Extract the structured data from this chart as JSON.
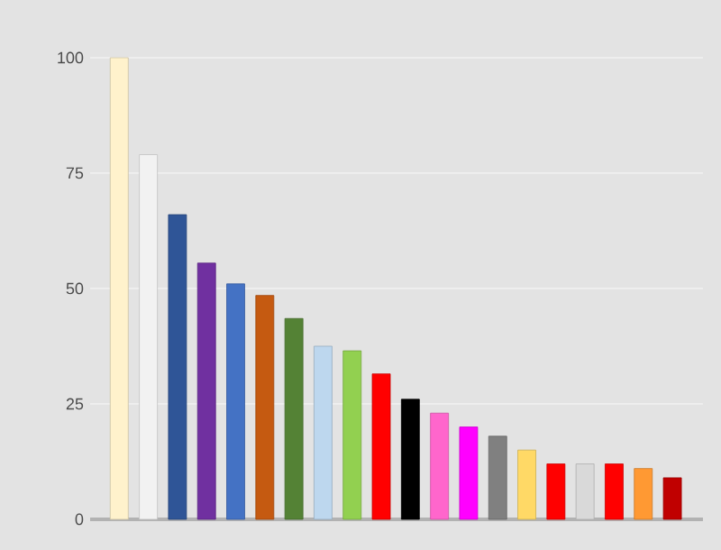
{
  "chart_data": {
    "type": "bar",
    "categories": [
      null,
      null,
      null,
      null,
      null,
      null,
      null,
      null,
      null,
      null,
      null,
      null,
      null,
      null,
      null,
      null,
      null,
      null,
      null,
      null
    ],
    "values": [
      100,
      79,
      66,
      55.5,
      51,
      48.5,
      43.5,
      37.5,
      36.5,
      31.5,
      26,
      23,
      20,
      18,
      15,
      12,
      12,
      12,
      11,
      9
    ],
    "colors": [
      "#fff2cc",
      "#f2f2f2",
      "#2f5597",
      "#7030a0",
      "#4472c4",
      "#c55a11",
      "#548235",
      "#bdd7ee",
      "#92d050",
      "#ff0000",
      "#000000",
      "#ff66cc",
      "#ff00ff",
      "#808080",
      "#ffd966",
      "#ff0000",
      "#d9d9d9",
      "#ff0000",
      "#ff9933",
      "#c00000"
    ],
    "ylim": [
      0,
      100
    ],
    "yticks": [
      0,
      25,
      50,
      75,
      100
    ],
    "grid": "y",
    "tick_labels": "y"
  }
}
